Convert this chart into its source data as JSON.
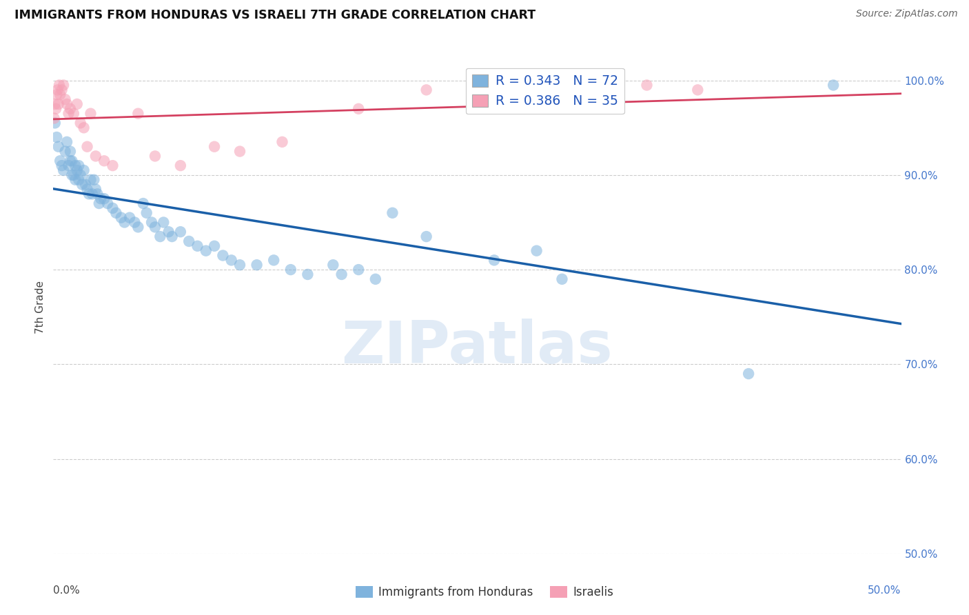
{
  "title": "IMMIGRANTS FROM HONDURAS VS ISRAELI 7TH GRADE CORRELATION CHART",
  "source": "Source: ZipAtlas.com",
  "ylabel_text": "7th Grade",
  "x_range": [
    0.0,
    50.0
  ],
  "y_range": [
    50.0,
    102.0
  ],
  "y_ticks": [
    50.0,
    60.0,
    70.0,
    80.0,
    90.0,
    100.0
  ],
  "x_ticks": [
    0.0,
    10.0,
    20.0,
    30.0,
    40.0,
    50.0
  ],
  "R_blue": 0.343,
  "N_blue": 72,
  "R_pink": 0.386,
  "N_pink": 35,
  "blue_color": "#7fb3dd",
  "pink_color": "#f5a0b5",
  "blue_line_color": "#1a5fa8",
  "pink_line_color": "#d44060",
  "legend_label_blue": "Immigrants from Honduras",
  "legend_label_pink": "Israelis",
  "blue_x": [
    0.1,
    0.2,
    0.3,
    0.4,
    0.5,
    0.6,
    0.7,
    0.8,
    0.9,
    1.0,
    1.0,
    1.1,
    1.1,
    1.2,
    1.3,
    1.3,
    1.4,
    1.5,
    1.5,
    1.6,
    1.7,
    1.8,
    1.9,
    2.0,
    2.1,
    2.2,
    2.3,
    2.4,
    2.5,
    2.6,
    2.7,
    2.8,
    3.0,
    3.2,
    3.5,
    3.7,
    4.0,
    4.2,
    4.5,
    4.8,
    5.0,
    5.3,
    5.5,
    5.8,
    6.0,
    6.3,
    6.5,
    6.8,
    7.0,
    7.5,
    8.0,
    8.5,
    9.0,
    9.5,
    10.0,
    10.5,
    11.0,
    12.0,
    13.0,
    14.0,
    15.0,
    16.5,
    17.0,
    18.0,
    19.0,
    20.0,
    22.0,
    26.0,
    28.5,
    30.0,
    41.0,
    46.0
  ],
  "blue_y": [
    95.5,
    94.0,
    93.0,
    91.5,
    91.0,
    90.5,
    92.5,
    93.5,
    91.0,
    91.5,
    92.5,
    90.0,
    91.5,
    90.0,
    89.5,
    91.0,
    90.5,
    89.5,
    91.0,
    90.0,
    89.0,
    90.5,
    89.0,
    88.5,
    88.0,
    89.5,
    88.0,
    89.5,
    88.5,
    88.0,
    87.0,
    87.5,
    87.5,
    87.0,
    86.5,
    86.0,
    85.5,
    85.0,
    85.5,
    85.0,
    84.5,
    87.0,
    86.0,
    85.0,
    84.5,
    83.5,
    85.0,
    84.0,
    83.5,
    84.0,
    83.0,
    82.5,
    82.0,
    82.5,
    81.5,
    81.0,
    80.5,
    80.5,
    81.0,
    80.0,
    79.5,
    80.5,
    79.5,
    80.0,
    79.0,
    86.0,
    83.5,
    81.0,
    82.0,
    79.0,
    69.0,
    99.5
  ],
  "pink_x": [
    0.05,
    0.1,
    0.15,
    0.2,
    0.25,
    0.3,
    0.35,
    0.4,
    0.5,
    0.6,
    0.7,
    0.8,
    0.9,
    1.0,
    1.2,
    1.4,
    1.6,
    1.8,
    2.0,
    2.2,
    2.5,
    3.0,
    3.5,
    5.0,
    6.0,
    7.5,
    9.5,
    11.0,
    13.5,
    18.0,
    22.0,
    26.0,
    30.0,
    35.0,
    38.0
  ],
  "pink_y": [
    96.0,
    97.5,
    97.0,
    98.5,
    99.0,
    97.5,
    99.5,
    98.5,
    99.0,
    99.5,
    98.0,
    97.5,
    96.5,
    97.0,
    96.5,
    97.5,
    95.5,
    95.0,
    93.0,
    96.5,
    92.0,
    91.5,
    91.0,
    96.5,
    92.0,
    91.0,
    93.0,
    92.5,
    93.5,
    97.0,
    99.0,
    99.0,
    98.5,
    99.5,
    99.0
  ]
}
